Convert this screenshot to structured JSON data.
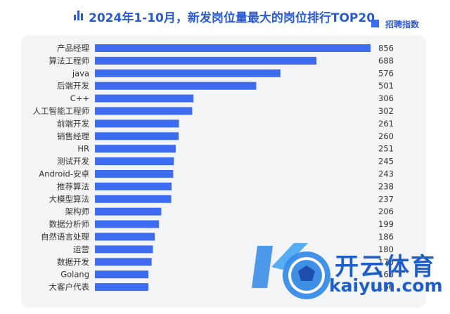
{
  "header": {
    "title": "2024年1-10月，新发岗位量最大的岗位排行TOP20",
    "legend_label": "招聘指数"
  },
  "colors": {
    "bar": "#3d6cf0",
    "title": "#2a5bd7",
    "label": "#333333",
    "panel": "#f3f4f6"
  },
  "watermark": {
    "cn": "开云体育",
    "en": "kaiyun.com"
  },
  "chart_data": {
    "type": "bar",
    "orientation": "horizontal",
    "title": "2024年1-10月，新发岗位量最大的岗位排行TOP20",
    "legend": [
      "招聘指数"
    ],
    "legend_position": "top-right",
    "grid": false,
    "categories": [
      "产品经理",
      "算法工程师",
      "java",
      "后端开发",
      "C++",
      "人工智能工程师",
      "前端开发",
      "销售经理",
      "HR",
      "测试开发",
      "Android-安卓",
      "推荐算法",
      "大模型算法",
      "架构师",
      "数据分析师",
      "自然语言处理",
      "运营",
      "数据开发",
      "Golang",
      "大客户代表"
    ],
    "series": [
      {
        "name": "招聘指数",
        "values": [
          856,
          688,
          576,
          501,
          306,
          302,
          261,
          260,
          251,
          245,
          243,
          238,
          237,
          206,
          199,
          186,
          180,
          176,
          166,
          166
        ]
      }
    ],
    "value_labels": [
      "856",
      "688",
      "576",
      "501",
      "306",
      "302",
      "261",
      "260",
      "251",
      "245",
      "243",
      "238",
      "237",
      "206",
      "199",
      "186",
      "180",
      "176",
      "166",
      "166"
    ],
    "xlim": [
      0,
      856
    ]
  }
}
